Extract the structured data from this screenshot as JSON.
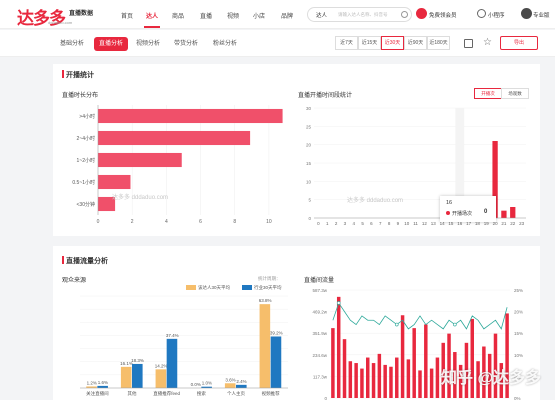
{
  "header": {
    "logo_main": "达多多",
    "logo_sub": "直播数据",
    "logo_url": "dddaduo.com",
    "nav": [
      "首页",
      "达人",
      "商品",
      "直播",
      "视频",
      "小店",
      "品牌"
    ],
    "nav_active_index": 1,
    "search_category": "达人",
    "search_placeholder": "请输入达人名称、抖音号",
    "vip_label": "免费领会员",
    "mini_label": "小程序",
    "pro_label": "专业版"
  },
  "subnav": {
    "tabs": [
      "基础分析",
      "直播分析",
      "视频分析",
      "带货分析",
      "粉丝分析"
    ],
    "active_index": 1,
    "date_buttons": [
      "近7天",
      "近15天",
      "近30天",
      "近90天",
      "近180天"
    ],
    "date_active_index": 2,
    "export_label": "导出"
  },
  "section1": {
    "title": "开播统计",
    "left_title": "直播时长分布",
    "right_title": "直播开播时间段统计",
    "toggle": [
      "开播次",
      "场观数"
    ],
    "watermark": "达多多 dddaduo.com",
    "tooltip": {
      "x_label": "16",
      "series": "开播场次",
      "value": "0"
    }
  },
  "section2": {
    "title": "直播流量分析",
    "left_title": "观众来源",
    "legend_note": "统计周期：",
    "legend": [
      "该达人30天平均",
      "行业30天平均"
    ],
    "right_title": "直播间流量"
  },
  "chart_data": [
    {
      "type": "bar",
      "orientation": "horizontal",
      "title": "直播时长分布",
      "categories": [
        ">4小时",
        "2~4小时",
        "1~2小时",
        "0.5~1小时",
        "<30分钟"
      ],
      "values": [
        10.8,
        8.9,
        4.9,
        1.9,
        1.0
      ],
      "xlim": [
        0,
        11
      ],
      "xticks": [
        0,
        2,
        4,
        6,
        8,
        10
      ],
      "color": "#f0506a"
    },
    {
      "type": "bar",
      "title": "直播开播时间段统计",
      "categories": [
        "0",
        "1",
        "2",
        "3",
        "4",
        "5",
        "6",
        "7",
        "8",
        "9",
        "10",
        "11",
        "12",
        "13",
        "14",
        "15",
        "16",
        "17",
        "18",
        "19",
        "20",
        "21",
        "22",
        "23"
      ],
      "values": [
        0,
        0,
        0,
        0,
        0,
        0,
        0,
        0,
        0,
        0,
        0,
        0,
        0,
        0,
        0,
        0,
        0,
        0,
        0,
        0,
        21,
        2,
        3,
        0
      ],
      "series": [
        {
          "name": "开播场次"
        }
      ],
      "ylim": [
        0,
        30
      ],
      "color": "#e8283e"
    },
    {
      "type": "bar",
      "title": "观众来源",
      "categories": [
        "关注直播间",
        "其他",
        "直播推荐feed",
        "搜索",
        "个人主页",
        "视频推荐"
      ],
      "series": [
        {
          "name": "该达人30天平均",
          "values": [
            1.2,
            16.1,
            14.2,
            0.0,
            3.6,
            63.8
          ],
          "labels": [
            "1.2%",
            "16.1%",
            "14.2%",
            "0.0%",
            "3.6%",
            "63.8%"
          ],
          "color": "#f6be6b"
        },
        {
          "name": "行业30天平均",
          "values": [
            1.6,
            18.3,
            37.4,
            1.0,
            2.4,
            39.2
          ],
          "labels": [
            "1.6%",
            "18.3%",
            "37.4%",
            "1.0%",
            "2.4%",
            "39.2%"
          ],
          "color": "#1f78c1"
        }
      ],
      "ylim": [
        0,
        70
      ]
    },
    {
      "type": "bar",
      "title": "直播间流量",
      "y_left_ticks": [
        "0",
        "117.3w",
        "234.6w",
        "351.9w",
        "469.2w",
        "587.3w"
      ],
      "y_right_ticks": [
        "0%",
        "5%",
        "10%",
        "15%",
        "20%",
        "25%"
      ],
      "ylim_left": [
        0,
        587.3
      ],
      "ylim_right": [
        0,
        25
      ],
      "bars": [
        380,
        550,
        320,
        200,
        190,
        160,
        220,
        190,
        240,
        180,
        170,
        220,
        450,
        210,
        380,
        150,
        400,
        160,
        220,
        300,
        350,
        250,
        180,
        300,
        430,
        200,
        280,
        240,
        350,
        190,
        460
      ],
      "line": [
        18,
        22,
        20,
        18,
        17,
        19,
        18,
        18,
        17,
        19,
        18,
        17,
        18,
        16,
        17,
        19,
        17,
        18,
        17,
        16,
        18,
        17,
        18,
        16,
        19,
        18,
        16,
        17,
        18,
        16,
        21
      ],
      "bar_color": "#e8283e",
      "line_color": "#2fa99b"
    }
  ]
}
